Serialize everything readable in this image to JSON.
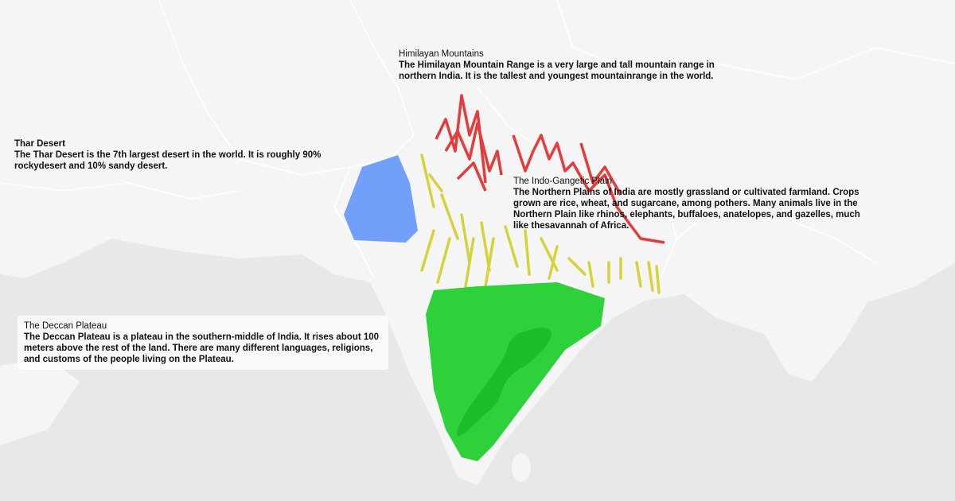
{
  "annotations": [
    {
      "title": "Himilayan Mountains",
      "text": "The Himilayan Mountain Range is a very large and tall mountain range in northern India. It is the tallest and youngest mountainrange in the world."
    },
    {
      "title": "Thar Desert",
      "text": "The Thar Desert is the 7th largest desert in the world. It is roughly 90% rockydesert and 10% sandy desert."
    },
    {
      "title": "The Indo-Gangetic Plain",
      "text": "The Northern Plains of India are mostly grassland or cultivated farmland. Crops grown are rice, wheat, and sugarcane, among pothers. Many animals live in the Northern Plain like rhinos, elephants, buffaloes, anatelopes, and gazelles, much like thesavannah of Africa."
    },
    {
      "title": "The Deccan Plateau",
      "text": "The Deccan Plateau is a plateau in the southern-middle of India. It rises about 100 meters above the rest of the land. There are many different languages, religions, and customs of the people living on the Plateau."
    }
  ]
}
